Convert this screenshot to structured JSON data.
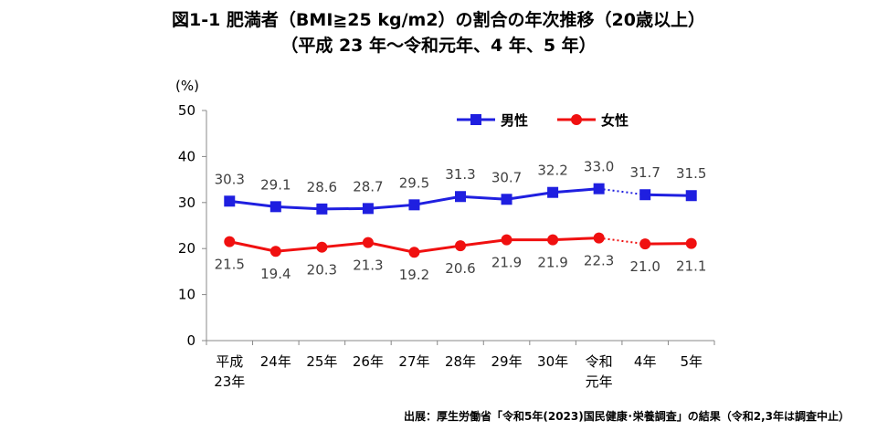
{
  "title": "図1-1 肥満者（BMI≧25 kg/m2）の割合の年次推移（20歳以上）",
  "subtitle": "（平成 23 年〜令和元年、4 年、5 年）",
  "source": "出展：厚生労働省「令和5年(2023)国民健康･栄養調査」の結果（令和2,3年は調査中止）",
  "chart_data": {
    "type": "line",
    "ylabel": "(%)",
    "ylim": [
      0,
      50
    ],
    "yticks": [
      "0",
      "10",
      "20",
      "30",
      "40",
      "50"
    ],
    "categories": [
      [
        "平成",
        "23年"
      ],
      [
        "24年"
      ],
      [
        "25年"
      ],
      [
        "26年"
      ],
      [
        "27年"
      ],
      [
        "28年"
      ],
      [
        "29年"
      ],
      [
        "30年"
      ],
      [
        "令和",
        "元年"
      ],
      [
        "4年"
      ],
      [
        "5年"
      ]
    ],
    "gap_after_index": 8,
    "legend_position": "top-right",
    "series": [
      {
        "name": "男性",
        "color": "#1f1fe0",
        "marker": "square",
        "values": [
          30.3,
          29.1,
          28.6,
          28.7,
          29.5,
          31.3,
          30.7,
          32.2,
          33.0,
          31.7,
          31.5
        ],
        "labels": [
          "30.3",
          "29.1",
          "28.6",
          "28.7",
          "29.5",
          "31.3",
          "30.7",
          "32.2",
          "33.0",
          "31.7",
          "31.5"
        ],
        "label_side": "above"
      },
      {
        "name": "女性",
        "color": "#f01010",
        "marker": "circle",
        "values": [
          21.5,
          19.4,
          20.3,
          21.3,
          19.2,
          20.6,
          21.9,
          21.9,
          22.3,
          21.0,
          21.1
        ],
        "labels": [
          "21.5",
          "19.4",
          "20.3",
          "21.3",
          "19.2",
          "20.6",
          "21.9",
          "21.9",
          "22.3",
          "21.0",
          "21.1"
        ],
        "label_side": "below"
      }
    ]
  }
}
